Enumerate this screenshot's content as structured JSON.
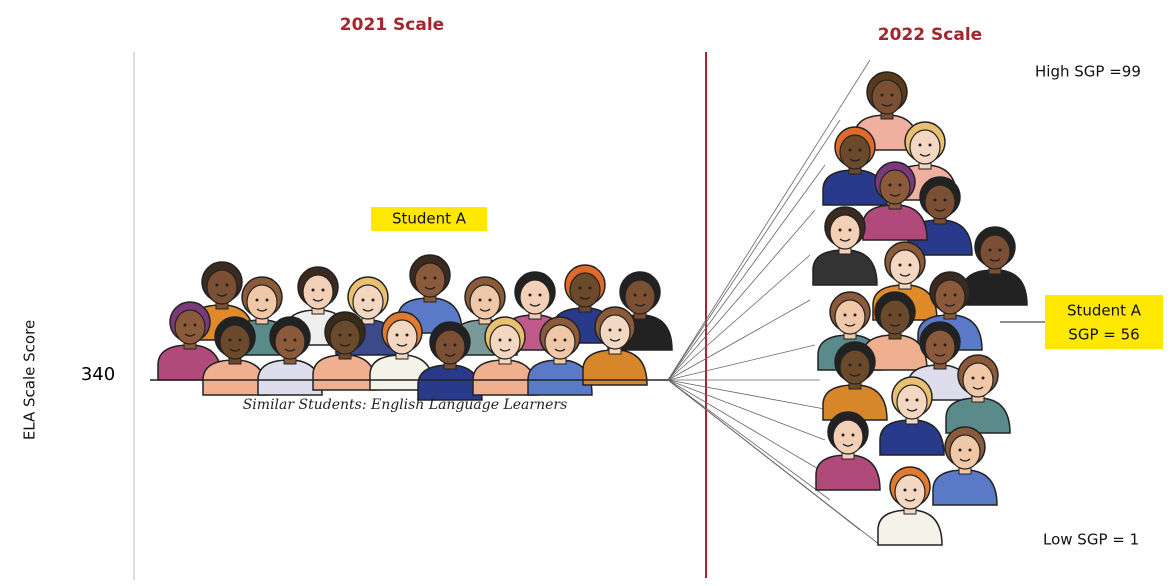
{
  "headers": {
    "left": "2021 Scale",
    "right": "2022 Scale"
  },
  "axis": {
    "label": "ELA Scale Score",
    "tick": 340
  },
  "student_label": "Student A",
  "caption": "Similar Students: English Language Learners",
  "labels": {
    "high": "High SGP =99",
    "student": [
      "Student A",
      "SGP = 56"
    ],
    "low": "Low SGP = 1"
  }
}
